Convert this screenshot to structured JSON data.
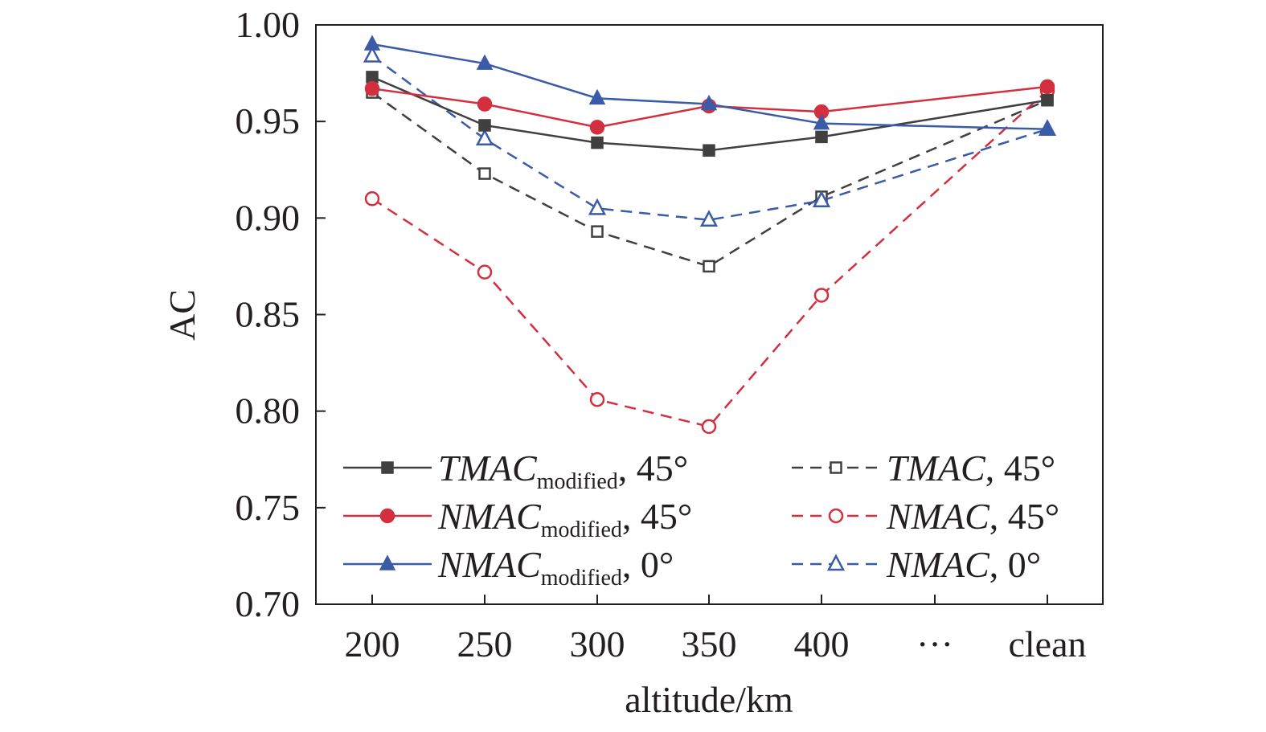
{
  "chart_data": {
    "type": "line",
    "title": "",
    "xlabel": "altitude/km",
    "ylabel": "AC",
    "categories": [
      "200",
      "250",
      "300",
      "350",
      "400",
      "···",
      "clean"
    ],
    "ylim": [
      0.7,
      1.0
    ],
    "yticks": [
      "0.70",
      "0.75",
      "0.80",
      "0.85",
      "0.90",
      "0.95",
      "1.00"
    ],
    "grid": false,
    "legend_position": "bottom-left, two columns",
    "series": [
      {
        "name_main": "TMAC",
        "name_sub": "modified",
        "name_rest": ", 45°",
        "color": "#404040",
        "line_style": "solid",
        "marker": "square",
        "filled": true,
        "x": [
          "200",
          "250",
          "300",
          "350",
          "400",
          "clean"
        ],
        "values": [
          0.973,
          0.948,
          0.939,
          0.935,
          0.942,
          0.961
        ]
      },
      {
        "name_main": "NMAC",
        "name_sub": "modified",
        "name_rest": ", 45°",
        "color": "#d32f3f",
        "line_style": "solid",
        "marker": "circle",
        "filled": true,
        "x": [
          "200",
          "250",
          "300",
          "350",
          "400",
          "clean"
        ],
        "values": [
          0.967,
          0.959,
          0.947,
          0.958,
          0.955,
          0.968
        ]
      },
      {
        "name_main": "NMAC",
        "name_sub": "modified",
        "name_rest": ", 0°",
        "color": "#3a5ba8",
        "line_style": "solid",
        "marker": "triangle",
        "filled": true,
        "x": [
          "200",
          "250",
          "300",
          "350",
          "400",
          "clean"
        ],
        "values": [
          0.99,
          0.98,
          0.962,
          0.959,
          0.949,
          0.946
        ]
      },
      {
        "name_main": "TMAC",
        "name_sub": "",
        "name_rest": ", 45°",
        "color": "#404040",
        "line_style": "dashed",
        "marker": "square",
        "filled": false,
        "x": [
          "200",
          "250",
          "300",
          "350",
          "400",
          "clean"
        ],
        "values": [
          0.965,
          0.923,
          0.893,
          0.875,
          0.911,
          0.961
        ]
      },
      {
        "name_main": "NMAC",
        "name_sub": "",
        "name_rest": ", 45°",
        "color": "#d32f3f",
        "line_style": "dashed",
        "marker": "circle",
        "filled": false,
        "x": [
          "200",
          "250",
          "300",
          "350",
          "400",
          "clean"
        ],
        "values": [
          0.91,
          0.872,
          0.806,
          0.792,
          0.86,
          0.966
        ]
      },
      {
        "name_main": "NMAC",
        "name_sub": "",
        "name_rest": ", 0°",
        "color": "#3a5ba8",
        "line_style": "dashed",
        "marker": "triangle",
        "filled": false,
        "x": [
          "200",
          "250",
          "300",
          "350",
          "400",
          "clean"
        ],
        "values": [
          0.984,
          0.941,
          0.905,
          0.899,
          0.909,
          0.946
        ]
      }
    ]
  }
}
